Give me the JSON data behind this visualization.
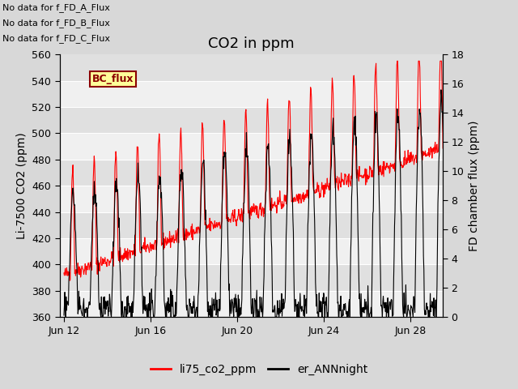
{
  "title": "CO2 in ppm",
  "ylabel_left": "Li-7500 CO2 (ppm)",
  "ylabel_right": "FD chamber flux (ppm)",
  "ylim_left": [
    360,
    560
  ],
  "ylim_right": [
    0,
    18
  ],
  "yticks_left": [
    360,
    380,
    400,
    420,
    440,
    460,
    480,
    500,
    520,
    540,
    560
  ],
  "yticks_right": [
    0,
    2,
    4,
    6,
    8,
    10,
    12,
    14,
    16,
    18
  ],
  "xtick_labels": [
    "Jun 12",
    "Jun 16",
    "Jun 20",
    "Jun 24",
    "Jun 28"
  ],
  "xtick_days": [
    0,
    4,
    8,
    12,
    16
  ],
  "total_days": 18,
  "legend_labels": [
    "li75_co2_ppm",
    "er_ANNnight"
  ],
  "color_red": "#ff0000",
  "color_black": "#000000",
  "bg_color": "#d8d8d8",
  "band_light": "#f0f0f0",
  "band_dark": "#e0e0e0",
  "no_data_texts": [
    "No data for f_FD_A_Flux",
    "No data for f_FD_B_Flux",
    "No data for f_FD_C_Flux"
  ],
  "bc_flux_text": "BC_flux",
  "title_fontsize": 13,
  "axis_label_fontsize": 10,
  "tick_fontsize": 9,
  "annotation_fontsize": 9
}
